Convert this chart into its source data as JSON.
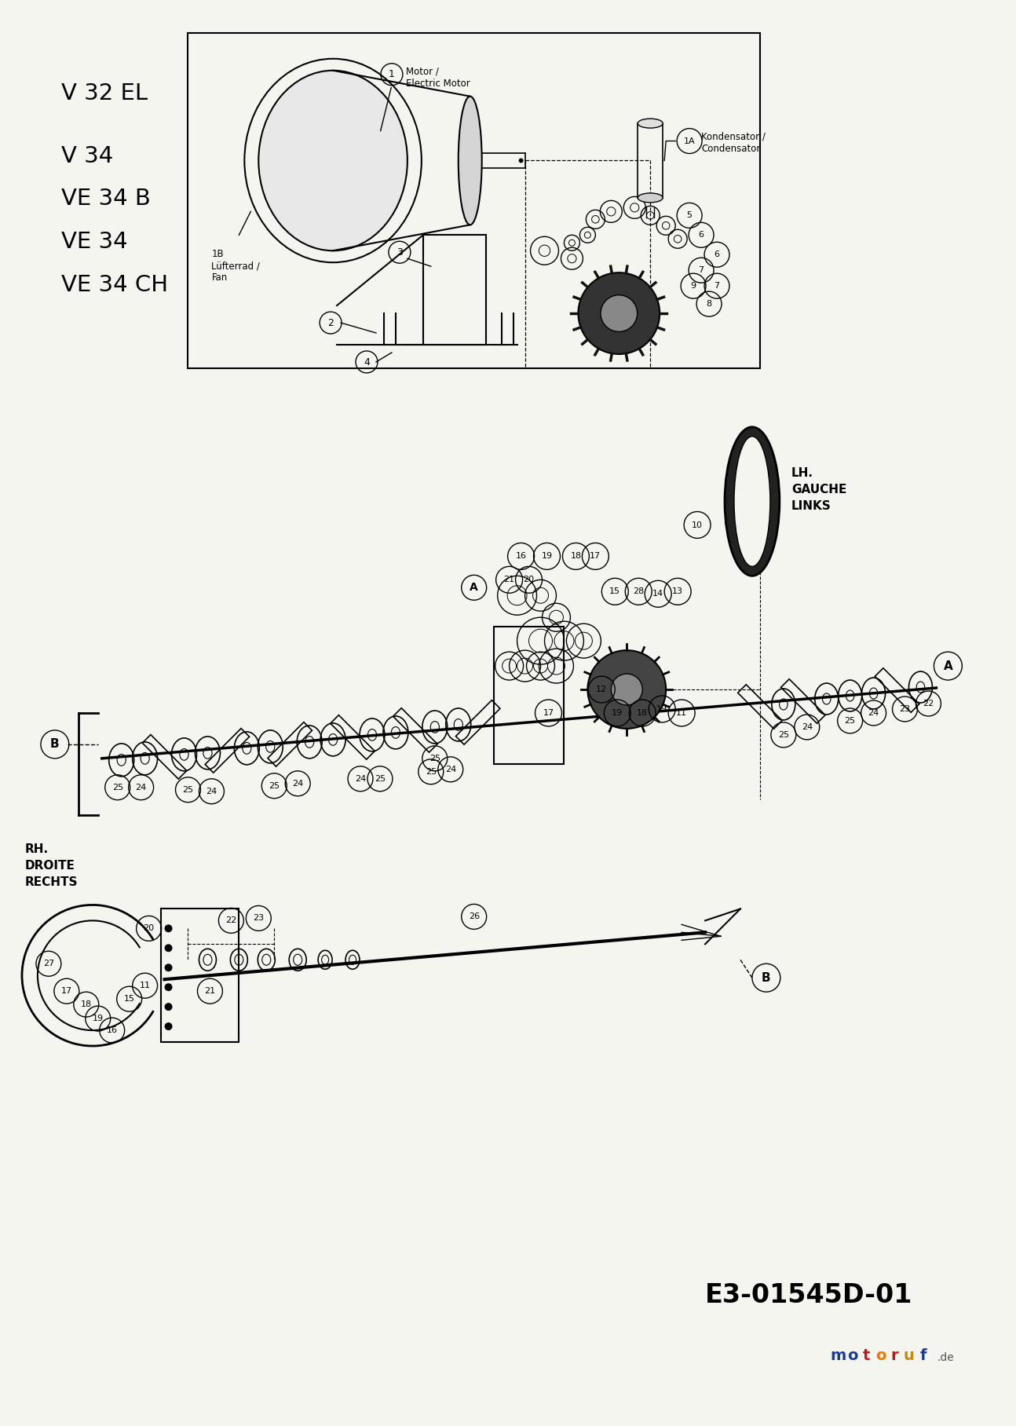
{
  "background_color": "#f5f5f0",
  "page_width": 12.77,
  "page_height": 18.0,
  "model_labels": [
    "V 32 EL",
    "V 34",
    "VE 34 B",
    "VE 34",
    "VE 34 CH"
  ],
  "diagram_code_text": "E3-01545D-01",
  "lh_label": "LH.\nGAUCHE\nLINKS",
  "rh_label": "RH.\nDROITE\nRECHTS",
  "motoruf_letter_colors": [
    "#1a3a9a",
    "#1a3a9a",
    "#cc1111",
    "#ee7700",
    "#cc1111",
    "#cc8800",
    "#1a3a9a"
  ],
  "motor_label": "Motor /\nElectric Motor",
  "kondensator_label": "Kondensator /\nCondensator",
  "fan_label": "1B\nLüfterrad /\nFan"
}
